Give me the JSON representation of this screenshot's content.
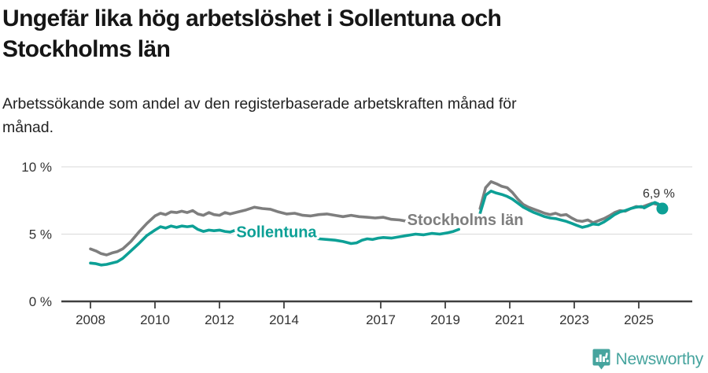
{
  "header": {
    "title_lines": [
      "Ungefär lika hög arbetslöshet i Sollentuna och",
      "Stockholms län"
    ],
    "subtitle_lines": [
      "Arbetssökande som andel av den registerbaserade arbetskraften månad för",
      "månad."
    ]
  },
  "footer": {
    "brand": "Newsworthy",
    "logo_icon": "newsworthy-bubble-barchart-icon",
    "brand_color": "#46a49e"
  },
  "colors": {
    "sollentuna": "#0da096",
    "stockholms_lan": "#7e7e7e",
    "gridline": "#d9d9d9",
    "axis": "#3f3f3f",
    "text": "#333333"
  },
  "chart_data": {
    "type": "line",
    "title": "Ungefär lika hög arbetslöshet i Sollentuna och Stockholms län",
    "subtitle": "Arbetssökande som andel av den registerbaserade arbetskraften månad för månad.",
    "xlabel": "",
    "ylabel": "",
    "ylim": [
      0,
      10
    ],
    "xlim": [
      2007.1,
      2026.6
    ],
    "grid": "horizontal",
    "legend": "inline-labels",
    "y_ticks": [
      {
        "value": 0,
        "label": "0 %"
      },
      {
        "value": 5,
        "label": "5 %"
      },
      {
        "value": 10,
        "label": "10 %"
      }
    ],
    "x_ticks": [
      {
        "value": 2008,
        "label": "2008"
      },
      {
        "value": 2010,
        "label": "2010"
      },
      {
        "value": 2012,
        "label": "2012"
      },
      {
        "value": 2014,
        "label": "2014"
      },
      {
        "value": 2017,
        "label": "2017"
      },
      {
        "value": 2019,
        "label": "2019"
      },
      {
        "value": 2021,
        "label": "2021"
      },
      {
        "value": 2023,
        "label": "2023"
      },
      {
        "value": 2025,
        "label": "2025"
      }
    ],
    "series": [
      {
        "name": "Stockholms län",
        "color": "#7e7e7e",
        "stroke_width": 3.6,
        "segments": [
          [
            [
              2008.0,
              3.9
            ],
            [
              2008.17,
              3.75
            ],
            [
              2008.33,
              3.55
            ],
            [
              2008.5,
              3.45
            ],
            [
              2008.67,
              3.6
            ],
            [
              2008.83,
              3.7
            ],
            [
              2009.0,
              3.9
            ],
            [
              2009.25,
              4.45
            ],
            [
              2009.5,
              5.15
            ],
            [
              2009.75,
              5.8
            ],
            [
              2010.0,
              6.35
            ],
            [
              2010.17,
              6.55
            ],
            [
              2010.33,
              6.45
            ],
            [
              2010.5,
              6.65
            ],
            [
              2010.67,
              6.6
            ],
            [
              2010.83,
              6.7
            ],
            [
              2011.0,
              6.6
            ],
            [
              2011.17,
              6.75
            ],
            [
              2011.33,
              6.5
            ],
            [
              2011.5,
              6.4
            ],
            [
              2011.67,
              6.6
            ],
            [
              2011.83,
              6.45
            ],
            [
              2012.0,
              6.4
            ],
            [
              2012.17,
              6.6
            ],
            [
              2012.33,
              6.5
            ],
            [
              2012.58,
              6.65
            ],
            [
              2012.83,
              6.8
            ],
            [
              2013.08,
              7.0
            ],
            [
              2013.33,
              6.9
            ],
            [
              2013.58,
              6.85
            ],
            [
              2013.83,
              6.65
            ],
            [
              2014.08,
              6.5
            ],
            [
              2014.33,
              6.55
            ],
            [
              2014.58,
              6.4
            ],
            [
              2014.83,
              6.35
            ],
            [
              2015.08,
              6.45
            ],
            [
              2015.33,
              6.5
            ],
            [
              2015.58,
              6.4
            ],
            [
              2015.83,
              6.3
            ],
            [
              2016.08,
              6.4
            ],
            [
              2016.33,
              6.3
            ],
            [
              2016.58,
              6.25
            ],
            [
              2016.83,
              6.2
            ],
            [
              2017.08,
              6.25
            ],
            [
              2017.33,
              6.1
            ],
            [
              2017.58,
              6.05
            ],
            [
              2017.83,
              5.95
            ],
            [
              2018.08,
              6.0
            ],
            [
              2018.33,
              5.95
            ],
            [
              2018.58,
              6.0
            ],
            [
              2018.83,
              5.95
            ],
            [
              2019.08,
              6.05
            ],
            [
              2019.33,
              6.1
            ]
          ],
          [
            [
              2020.08,
              6.9
            ],
            [
              2020.25,
              8.45
            ],
            [
              2020.42,
              8.9
            ],
            [
              2020.58,
              8.75
            ],
            [
              2020.75,
              8.55
            ],
            [
              2020.92,
              8.45
            ],
            [
              2021.08,
              8.1
            ],
            [
              2021.25,
              7.6
            ],
            [
              2021.42,
              7.2
            ],
            [
              2021.58,
              7.0
            ],
            [
              2021.75,
              6.85
            ],
            [
              2021.92,
              6.7
            ],
            [
              2022.08,
              6.55
            ],
            [
              2022.25,
              6.45
            ],
            [
              2022.42,
              6.55
            ],
            [
              2022.58,
              6.4
            ],
            [
              2022.75,
              6.45
            ],
            [
              2022.92,
              6.2
            ],
            [
              2023.08,
              6.0
            ],
            [
              2023.25,
              5.95
            ],
            [
              2023.42,
              6.05
            ],
            [
              2023.58,
              5.85
            ],
            [
              2023.75,
              6.0
            ],
            [
              2023.92,
              6.15
            ],
            [
              2024.08,
              6.35
            ],
            [
              2024.25,
              6.6
            ],
            [
              2024.42,
              6.75
            ],
            [
              2024.58,
              6.7
            ],
            [
              2024.75,
              6.9
            ],
            [
              2024.92,
              7.05
            ],
            [
              2025.08,
              7.0
            ],
            [
              2025.25,
              7.15
            ],
            [
              2025.42,
              7.3
            ],
            [
              2025.58,
              7.2
            ],
            [
              2025.7,
              7.0
            ]
          ]
        ]
      },
      {
        "name": "Sollentuna",
        "color": "#0da096",
        "stroke_width": 3.6,
        "segments": [
          [
            [
              2008.0,
              2.85
            ],
            [
              2008.17,
              2.8
            ],
            [
              2008.33,
              2.7
            ],
            [
              2008.5,
              2.75
            ],
            [
              2008.67,
              2.85
            ],
            [
              2008.83,
              2.95
            ],
            [
              2009.0,
              3.2
            ],
            [
              2009.25,
              3.75
            ],
            [
              2009.5,
              4.3
            ],
            [
              2009.75,
              4.9
            ],
            [
              2010.0,
              5.3
            ],
            [
              2010.17,
              5.55
            ],
            [
              2010.33,
              5.45
            ],
            [
              2010.5,
              5.6
            ],
            [
              2010.67,
              5.5
            ],
            [
              2010.83,
              5.6
            ],
            [
              2011.0,
              5.55
            ],
            [
              2011.17,
              5.6
            ],
            [
              2011.33,
              5.35
            ],
            [
              2011.5,
              5.2
            ],
            [
              2011.67,
              5.3
            ],
            [
              2011.83,
              5.25
            ],
            [
              2012.0,
              5.3
            ],
            [
              2012.17,
              5.2
            ],
            [
              2012.33,
              5.15
            ],
            [
              2012.5,
              5.3
            ],
            [
              2012.67,
              5.35
            ],
            [
              2012.83,
              5.3
            ],
            [
              2013.08,
              5.35
            ],
            [
              2013.33,
              5.25
            ],
            [
              2013.58,
              5.3
            ],
            [
              2013.83,
              5.25
            ],
            [
              2014.08,
              5.15
            ],
            [
              2014.33,
              5.05
            ],
            [
              2014.58,
              4.95
            ],
            [
              2014.83,
              4.75
            ],
            [
              2015.08,
              4.65
            ],
            [
              2015.33,
              4.6
            ],
            [
              2015.58,
              4.55
            ],
            [
              2015.83,
              4.45
            ],
            [
              2016.08,
              4.3
            ],
            [
              2016.25,
              4.35
            ],
            [
              2016.42,
              4.55
            ],
            [
              2016.58,
              4.65
            ],
            [
              2016.75,
              4.6
            ],
            [
              2016.92,
              4.7
            ],
            [
              2017.08,
              4.75
            ],
            [
              2017.33,
              4.7
            ],
            [
              2017.58,
              4.8
            ],
            [
              2017.83,
              4.9
            ],
            [
              2018.08,
              5.0
            ],
            [
              2018.33,
              4.95
            ],
            [
              2018.58,
              5.05
            ],
            [
              2018.83,
              5.0
            ],
            [
              2019.08,
              5.1
            ],
            [
              2019.25,
              5.2
            ],
            [
              2019.42,
              5.35
            ]
          ],
          [
            [
              2020.08,
              6.55
            ],
            [
              2020.25,
              7.9
            ],
            [
              2020.42,
              8.2
            ],
            [
              2020.58,
              8.05
            ],
            [
              2020.75,
              7.95
            ],
            [
              2020.92,
              7.8
            ],
            [
              2021.08,
              7.6
            ],
            [
              2021.25,
              7.3
            ],
            [
              2021.42,
              7.0
            ],
            [
              2021.58,
              6.8
            ],
            [
              2021.75,
              6.6
            ],
            [
              2021.92,
              6.45
            ],
            [
              2022.08,
              6.3
            ],
            [
              2022.25,
              6.2
            ],
            [
              2022.42,
              6.15
            ],
            [
              2022.58,
              6.05
            ],
            [
              2022.75,
              5.95
            ],
            [
              2022.92,
              5.8
            ],
            [
              2023.08,
              5.65
            ],
            [
              2023.25,
              5.5
            ],
            [
              2023.42,
              5.6
            ],
            [
              2023.58,
              5.75
            ],
            [
              2023.75,
              5.7
            ],
            [
              2023.92,
              5.9
            ],
            [
              2024.08,
              6.15
            ],
            [
              2024.25,
              6.45
            ],
            [
              2024.42,
              6.65
            ],
            [
              2024.58,
              6.75
            ],
            [
              2024.75,
              6.9
            ],
            [
              2024.92,
              7.0
            ],
            [
              2025.08,
              7.05
            ],
            [
              2025.17,
              6.95
            ],
            [
              2025.33,
              7.15
            ],
            [
              2025.5,
              7.35
            ],
            [
              2025.6,
              7.25
            ],
            [
              2025.73,
              6.9
            ]
          ]
        ],
        "end_dot": {
          "x": 2025.73,
          "y": 6.9,
          "radius": 7.5
        }
      }
    ],
    "series_labels": [
      {
        "text": "Sollentuna",
        "x": 2012.52,
        "y": 4.78,
        "color": "#0da096"
      },
      {
        "text": "Stockholms län",
        "x": 2017.82,
        "y": 5.68,
        "color": "#7e7e7e"
      }
    ],
    "annotation": {
      "text": "6,9 %",
      "x": 2025.62,
      "y": 7.72
    }
  }
}
